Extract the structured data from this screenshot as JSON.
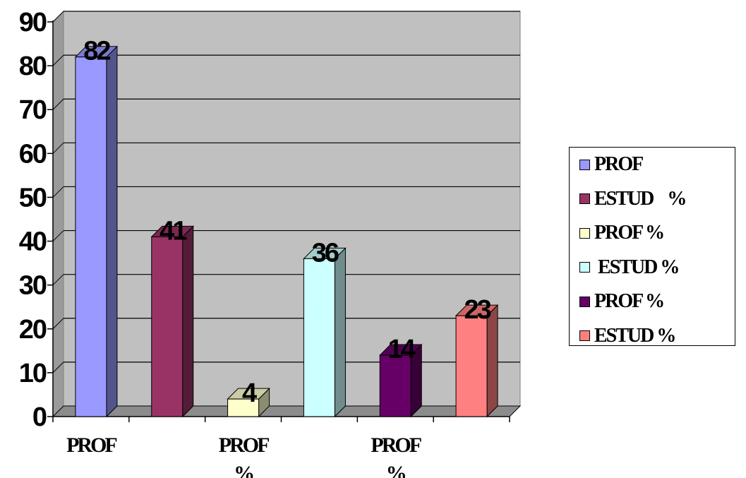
{
  "chart_data": {
    "type": "bar",
    "title": "",
    "xlabel": "",
    "ylabel": "",
    "ylim": [
      0,
      90
    ],
    "yticks": [
      0,
      10,
      20,
      30,
      40,
      50,
      60,
      70,
      80,
      90
    ],
    "grid": true,
    "style": "3d-columns",
    "plot_background": "#c0c0c0",
    "category_labels": [
      "PROF",
      "PROF %",
      "PROF %"
    ],
    "legend_position": "right",
    "series": [
      {
        "name": "PROF",
        "value": 82,
        "color": "#9999ff"
      },
      {
        "name": "ESTUD    %",
        "value": 41,
        "color": "#993366"
      },
      {
        "name": "PROF %",
        "value": 4,
        "color": "#ffffcc"
      },
      {
        "name": " ESTUD %",
        "value": 36,
        "color": "#ccffff"
      },
      {
        "name": "PROF %",
        "value": 14,
        "color": "#660066"
      },
      {
        "name": "ESTUD %",
        "value": 23,
        "color": "#ff8080"
      }
    ]
  }
}
